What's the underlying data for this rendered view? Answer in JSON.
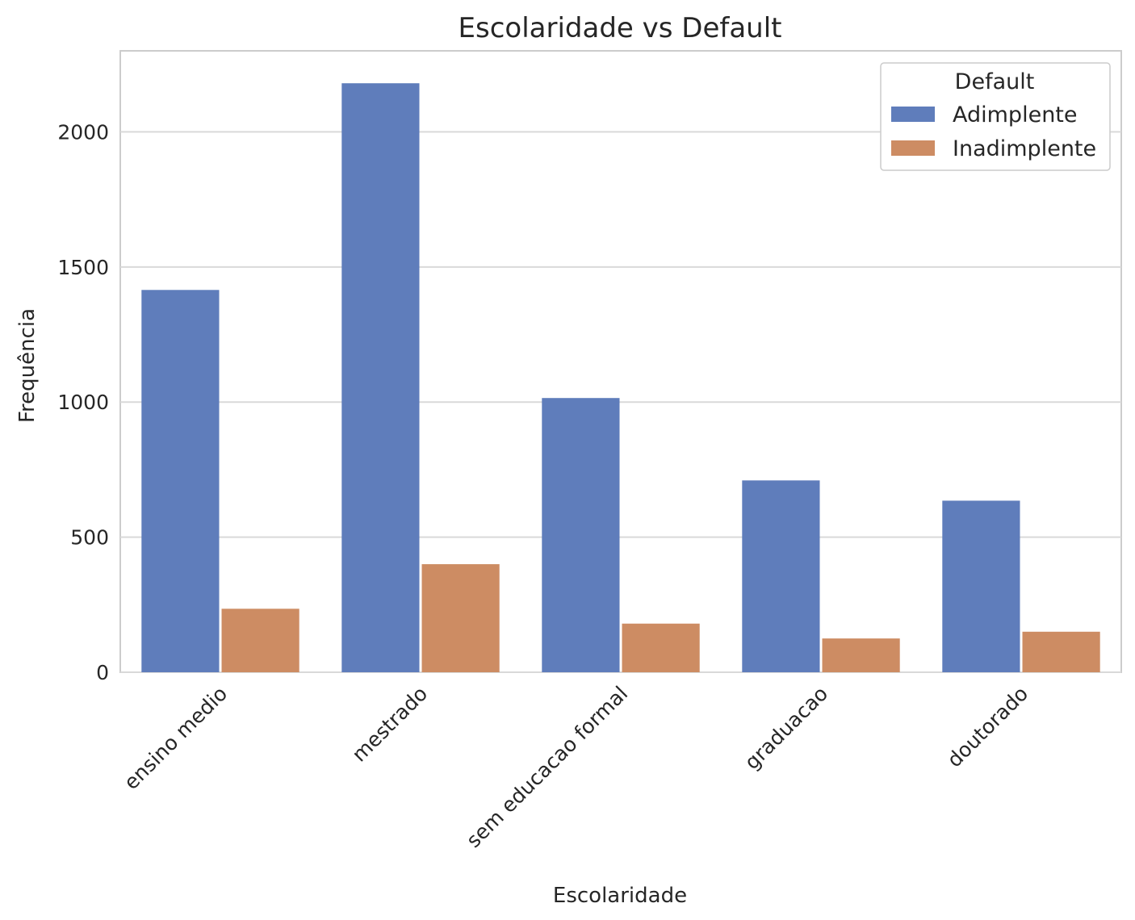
{
  "chart_data": {
    "type": "bar",
    "title": "Escolaridade vs Default",
    "xlabel": "Escolaridade",
    "ylabel": "Frequência",
    "categories": [
      "ensino medio",
      "mestrado",
      "sem educacao formal",
      "graduacao",
      "doutorado"
    ],
    "series": [
      {
        "name": "Adimplente",
        "color": "#5f7dbb",
        "values": [
          1415,
          2180,
          1015,
          710,
          635
        ]
      },
      {
        "name": "Inadimplente",
        "color": "#cd8c63",
        "values": [
          235,
          400,
          180,
          125,
          150
        ]
      }
    ],
    "ylim": [
      0,
      2300
    ],
    "yticks": [
      0,
      500,
      1000,
      1500,
      2000
    ],
    "grid": true,
    "legend": {
      "title": "Default",
      "placement": "top-right"
    }
  }
}
